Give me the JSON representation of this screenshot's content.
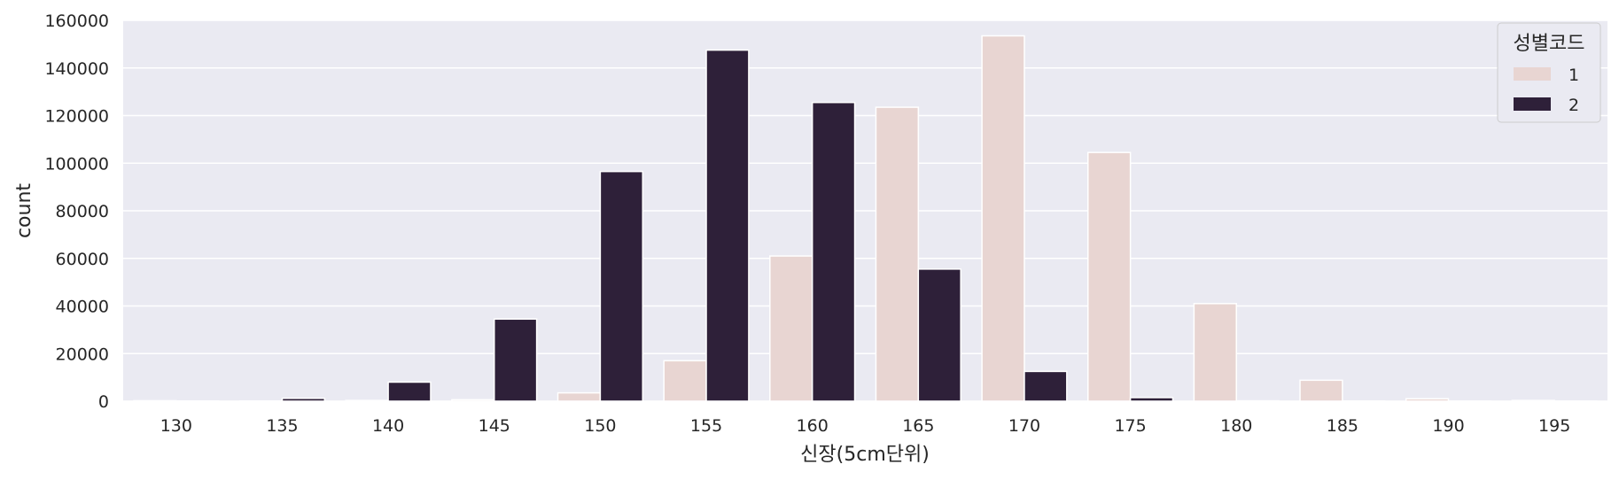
{
  "chart_data": {
    "type": "bar",
    "title": "",
    "xlabel": "신장(5cm단위)",
    "ylabel": "count",
    "categories": [
      "130",
      "135",
      "140",
      "145",
      "150",
      "155",
      "160",
      "165",
      "170",
      "175",
      "180",
      "185",
      "190",
      "195"
    ],
    "series": [
      {
        "name": "1",
        "color": "#e8d5d2",
        "values": [
          200,
          100,
          300,
          600,
          3500,
          17000,
          61000,
          123500,
          153500,
          104500,
          41000,
          8800,
          1000,
          300
        ]
      },
      {
        "name": "2",
        "color": "#2e2039",
        "values": [
          100,
          1200,
          8000,
          34500,
          96500,
          147500,
          125500,
          55500,
          12500,
          1500,
          150,
          50,
          20,
          10
        ]
      }
    ],
    "ylim": [
      0,
      160000
    ],
    "yticks": [
      "0",
      "20000",
      "40000",
      "60000",
      "80000",
      "100000",
      "120000",
      "140000",
      "160000"
    ],
    "grid": true,
    "background": "#eaeaf2",
    "legend": {
      "title": "성별코드",
      "placement": "top-right"
    }
  }
}
